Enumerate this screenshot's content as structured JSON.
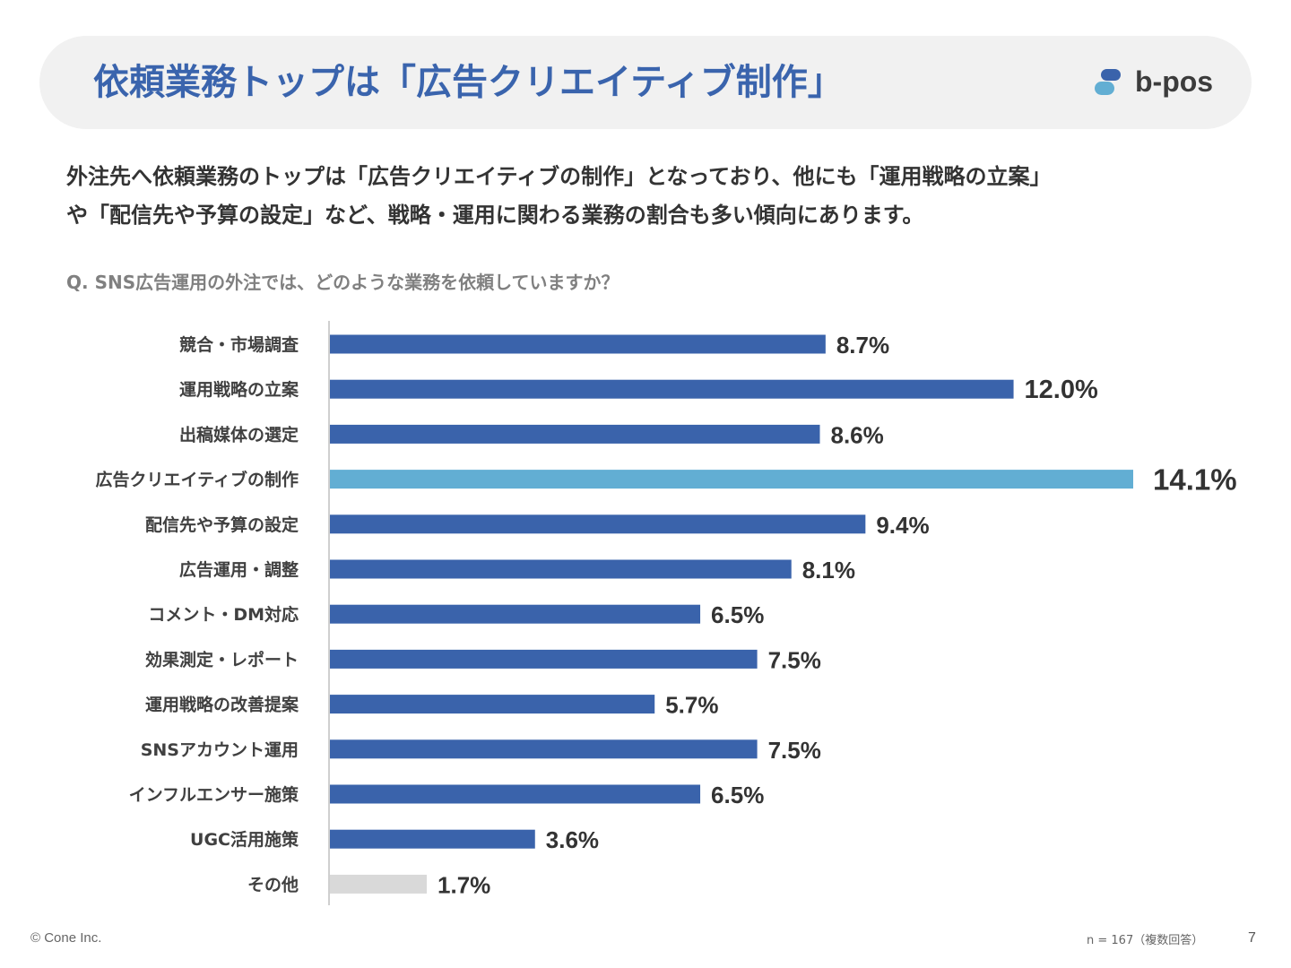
{
  "header": {
    "title": "依頼業務トップは「広告クリエイティブ制作」",
    "logo_text": "b-pos"
  },
  "lead": {
    "line1": "外注先へ依頼業務のトップは「広告クリエイティブの制作」となっており、他にも「運用戦略の立案」",
    "line2": "や「配信先や予算の設定」など、戦略・運用に関わる業務の割合も多い傾向にあります。"
  },
  "question": "Q. SNS広告運用の外注では、どのような業務を依頼していますか？",
  "colors": {
    "primary_bar": "#3a63ab",
    "highlight_bar": "#62aed3",
    "other_bar": "#d9d9d9",
    "title": "#3a64ad"
  },
  "chart_data": {
    "type": "bar",
    "orientation": "horizontal",
    "title": "Q. SNS広告運用の外注では、どのような業務を依頼していますか？",
    "categories": [
      "競合・市場調査",
      "運用戦略の立案",
      "出稿媒体の選定",
      "広告クリエイティブの制作",
      "配信先や予算の設定",
      "広告運用・調整",
      "コメント・DM対応",
      "効果測定・レポート",
      "運用戦略の改善提案",
      "SNSアカウント運用",
      "インフルエンサー施策",
      "UGC活用施策",
      "その他"
    ],
    "values": [
      8.7,
      12.0,
      8.6,
      14.1,
      9.4,
      8.1,
      6.5,
      7.5,
      5.7,
      7.5,
      6.5,
      3.6,
      1.7
    ],
    "labels": [
      "8.7%",
      "12.0%",
      "8.6%",
      "14.1%",
      "9.4%",
      "8.1%",
      "6.5%",
      "7.5%",
      "5.7%",
      "7.5%",
      "6.5%",
      "3.6%",
      "1.7%"
    ],
    "highlight_index": 3,
    "other_index": 12,
    "unit": "%",
    "xlim": [
      0,
      14.1
    ],
    "grid": false,
    "xlabel": "",
    "ylabel": ""
  },
  "footer": {
    "copyright": "© Cone Inc.",
    "note": "n = 167（複数回答）",
    "page": "7"
  }
}
